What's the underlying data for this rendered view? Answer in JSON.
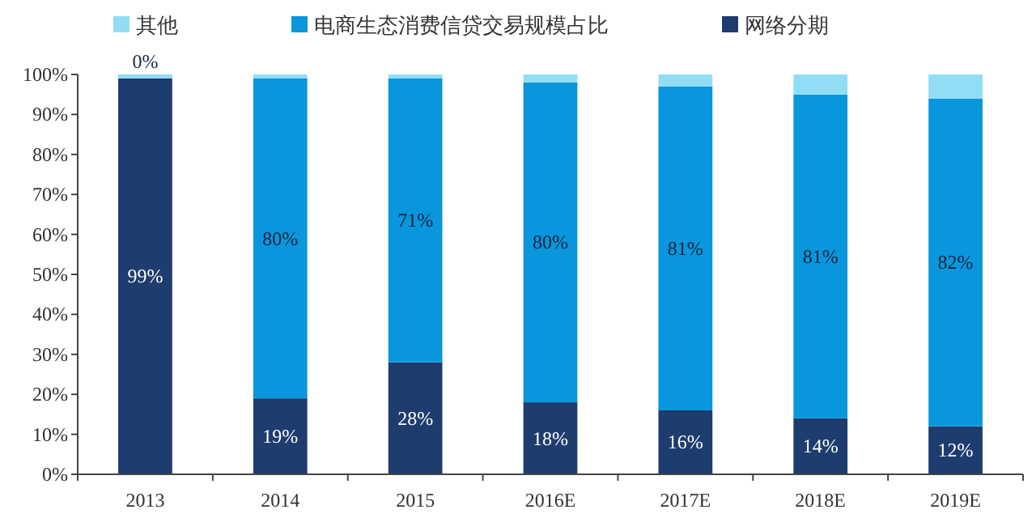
{
  "chart_data": {
    "type": "bar",
    "stacked": true,
    "categories": [
      "2013",
      "2014",
      "2015",
      "2016E",
      "2017E",
      "2018E",
      "2019E"
    ],
    "series": [
      {
        "name": "网络分期",
        "color": "#1e3c6e",
        "values": [
          99,
          19,
          28,
          18,
          16,
          14,
          12
        ],
        "value_labels": [
          "99%",
          "19%",
          "28%",
          "18%",
          "16%",
          "14%",
          "12%"
        ]
      },
      {
        "name": "电商生态消费信贷交易规模占比",
        "color": "#0a96dc",
        "values": [
          0,
          80,
          71,
          80,
          81,
          81,
          82
        ],
        "value_labels": [
          "0%",
          "80%",
          "71%",
          "80%",
          "81%",
          "81%",
          "82%"
        ]
      },
      {
        "name": "其他",
        "color": "#91ddf5",
        "values": [
          1,
          1,
          1,
          2,
          3,
          5,
          6
        ]
      }
    ],
    "ylim": [
      0,
      100
    ],
    "yticks": [
      {
        "value": 0,
        "label": "0%"
      },
      {
        "value": 10,
        "label": "10%"
      },
      {
        "value": 20,
        "label": "20%"
      },
      {
        "value": 30,
        "label": "30%"
      },
      {
        "value": 40,
        "label": "40%"
      },
      {
        "value": 50,
        "label": "50%"
      },
      {
        "value": 60,
        "label": "60%"
      },
      {
        "value": 70,
        "label": "70%"
      },
      {
        "value": 80,
        "label": "80%"
      },
      {
        "value": 90,
        "label": "90%"
      },
      {
        "value": 100,
        "label": "100%"
      }
    ],
    "grid": false,
    "legend": "top"
  }
}
